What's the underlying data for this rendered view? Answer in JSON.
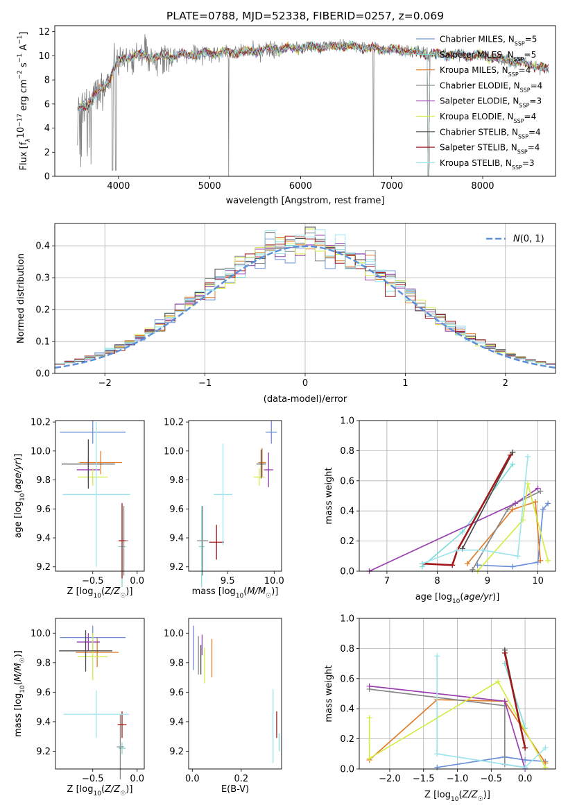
{
  "figure": {
    "title": "PLATE=0788, MJD=52338, FIBERID=0257, z=0.069"
  },
  "models": [
    {
      "name": "Chabrier MILES",
      "nssp": "5",
      "color": "#6a8fd8"
    },
    {
      "name": "Salpeter MILES",
      "nssp": "5",
      "color": "#7fdcd8"
    },
    {
      "name": "Kroupa MILES",
      "nssp": "4",
      "color": "#e07c2a"
    },
    {
      "name": "Chabrier ELODIE",
      "nssp": "4",
      "color": "#888888"
    },
    {
      "name": "Salpeter ELODIE",
      "nssp": "3",
      "color": "#9a3fb0"
    },
    {
      "name": "Kroupa ELODIE",
      "nssp": "4",
      "color": "#d5ec48"
    },
    {
      "name": "Chabrier STELIB",
      "nssp": "4",
      "color": "#4a4a4a"
    },
    {
      "name": "Salpeter STELIB",
      "nssp": "4",
      "color": "#a01818"
    },
    {
      "name": "Kroupa STELIB",
      "nssp": "3",
      "color": "#9ee4ee"
    }
  ],
  "chart_data": [
    {
      "id": "spectrum",
      "type": "line",
      "title": "PLATE=0788, MJD=52338, FIBERID=0257, z=0.069",
      "xlabel": "wavelength [Angstrom, rest frame]",
      "ylabel": "Flux [f_λ 10^-17 erg cm^-2 s^-1 A^-1]",
      "xlim": [
        3300,
        8800
      ],
      "ylim": [
        0,
        12.5
      ],
      "xticks": [
        "4000",
        "5000",
        "6000",
        "7000",
        "8000"
      ],
      "yticks": [
        "0",
        "2",
        "4",
        "6",
        "8",
        "10",
        "12"
      ],
      "data_color": "#808080",
      "continuum": {
        "x": [
          3550,
          3700,
          3850,
          4000,
          4200,
          4400,
          4700,
          5000,
          5500,
          6000,
          6500,
          7000,
          7500,
          8000,
          8500,
          8700
        ],
        "y": [
          5.5,
          6.3,
          7.5,
          9.6,
          10.1,
          9.9,
          10.1,
          10.2,
          10.4,
          10.7,
          10.8,
          10.5,
          10.1,
          10.0,
          9.3,
          8.9
        ]
      },
      "legend_position": "upper-right"
    },
    {
      "id": "residuals",
      "type": "histogram",
      "xlabel": "(data-model)/error",
      "ylabel": "Normed distribution",
      "xlim": [
        -2.5,
        2.5
      ],
      "ylim": [
        0,
        0.47
      ],
      "xticks": [
        "−2",
        "−1",
        "0",
        "1",
        "2"
      ],
      "yticks": [
        "0.0",
        "0.1",
        "0.2",
        "0.3",
        "0.4"
      ],
      "grid": true,
      "bin_width": 0.1,
      "reference_curve": {
        "label": "N(0, 1)",
        "mean": 0,
        "sigma": 1,
        "color": "#5b8fd9"
      }
    },
    {
      "id": "age-vs-Z",
      "type": "scatter",
      "xlabel": "Z [log10(Z/Z☉)]",
      "ylabel": "age [log10(age/yr)]",
      "xlim": [
        -0.92,
        0.08
      ],
      "ylim": [
        9.17,
        10.21
      ],
      "xticks": [
        "−0.5",
        "0.0"
      ],
      "xtick_values": [
        -0.5,
        0.0
      ],
      "yticks": [
        "9.2",
        "9.4",
        "9.6",
        "9.8",
        "10.0",
        "10.2"
      ],
      "points": [
        {
          "model": 0,
          "x": -0.5,
          "y": 10.13,
          "xerr": 0.37,
          "yerr": 0.08
        },
        {
          "model": 1,
          "x": -0.17,
          "y": 9.34,
          "xerr": 0.04,
          "yerr": 0.28
        },
        {
          "model": 2,
          "x": -0.41,
          "y": 9.92,
          "xerr": 0.24,
          "yerr": 0.08
        },
        {
          "model": 3,
          "x": -0.15,
          "y": 9.38,
          "xerr": 0.05,
          "yerr": 0.24
        },
        {
          "model": 4,
          "x": -0.55,
          "y": 9.87,
          "xerr": 0.13,
          "yerr": 0.08
        },
        {
          "model": 5,
          "x": -0.5,
          "y": 9.82,
          "xerr": 0.17,
          "yerr": 0.06
        },
        {
          "model": 6,
          "x": -0.55,
          "y": 9.91,
          "xerr": 0.3,
          "yerr": 0.17
        },
        {
          "model": 7,
          "x": -0.17,
          "y": 9.38,
          "xerr": 0.04,
          "yerr": 0.26
        },
        {
          "model": 8,
          "x": -0.46,
          "y": 9.7,
          "xerr": 0.38,
          "yerr": 0.5
        }
      ]
    },
    {
      "id": "age-vs-mass",
      "type": "scatter",
      "xlabel": "mass [log10(M/M☉)]",
      "ylabel": "",
      "xlim": [
        9.08,
        10.08
      ],
      "ylim": [
        9.17,
        10.21
      ],
      "xticks": [
        "9.5",
        "10.0"
      ],
      "xtick_values": [
        9.5,
        10.0
      ],
      "yticks": [
        "9.2",
        "9.4",
        "9.6",
        "9.8",
        "10.0",
        "10.2"
      ],
      "points": [
        {
          "model": 0,
          "x": 9.97,
          "y": 10.13,
          "xerr": 0.06,
          "yerr": 0.08
        },
        {
          "model": 1,
          "x": 9.22,
          "y": 9.34,
          "xerr": 0.03,
          "yerr": 0.28
        },
        {
          "model": 2,
          "x": 9.87,
          "y": 9.92,
          "xerr": 0.04,
          "yerr": 0.1
        },
        {
          "model": 3,
          "x": 9.23,
          "y": 9.38,
          "xerr": 0.06,
          "yerr": 0.24
        },
        {
          "model": 4,
          "x": 9.94,
          "y": 9.87,
          "xerr": 0.05,
          "yerr": 0.12
        },
        {
          "model": 5,
          "x": 9.84,
          "y": 9.82,
          "xerr": 0.06,
          "yerr": 0.06
        },
        {
          "model": 6,
          "x": 9.86,
          "y": 9.91,
          "xerr": 0.05,
          "yerr": 0.1
        },
        {
          "model": 7,
          "x": 9.38,
          "y": 9.37,
          "xerr": 0.08,
          "yerr": 0.12
        },
        {
          "model": 8,
          "x": 9.45,
          "y": 9.7,
          "xerr": 0.1,
          "yerr": 0.35
        }
      ]
    },
    {
      "id": "massweight-vs-age",
      "type": "line",
      "xlabel": "age [log10(age/yr)]",
      "ylabel": "mass weight",
      "xlim": [
        6.45,
        10.35
      ],
      "ylim": [
        0,
        1.0
      ],
      "xticks": [
        "7",
        "8",
        "9",
        "10"
      ],
      "xtick_values": [
        7,
        8,
        9,
        10
      ],
      "yticks": [
        "0.0",
        "0.2",
        "0.4",
        "0.6",
        "0.8",
        "1.0"
      ],
      "grid": true,
      "series": [
        {
          "model": 0,
          "x": [
            8.8,
            9.5,
            10.0,
            10.1,
            10.2
          ],
          "y": [
            0.04,
            0.03,
            0.06,
            0.41,
            0.45
          ]
        },
        {
          "model": 1,
          "x": [
            7.7,
            8.5,
            9.5
          ],
          "y": [
            0.03,
            0.26,
            0.71
          ]
        },
        {
          "model": 2,
          "x": [
            8.6,
            9.5,
            9.95,
            10.05
          ],
          "y": [
            0.05,
            0.41,
            0.46,
            0.07
          ]
        },
        {
          "model": 3,
          "x": [
            8.7,
            9.4,
            9.55,
            10.05
          ],
          "y": [
            0.01,
            0.41,
            0.45,
            0.53
          ]
        },
        {
          "model": 4,
          "x": [
            6.65,
            9.55,
            10.0
          ],
          "y": [
            0.0,
            0.45,
            0.55
          ]
        },
        {
          "model": 5,
          "x": [
            8.8,
            9.7,
            9.8,
            10.2
          ],
          "y": [
            0.0,
            0.34,
            0.58,
            0.07
          ]
        },
        {
          "model": 6,
          "x": [
            8.5,
            9.5
          ],
          "y": [
            0.15,
            0.79
          ]
        },
        {
          "model": 7,
          "x": [
            7.7,
            8.3,
            8.4,
            9.45
          ],
          "y": [
            0.05,
            0.04,
            0.14,
            0.77
          ]
        },
        {
          "model": 8,
          "x": [
            7.7,
            8.4,
            8.9,
            9.6,
            9.8
          ],
          "y": [
            0.05,
            0.14,
            0.14,
            0.1,
            0.76
          ]
        }
      ]
    },
    {
      "id": "mass-vs-Z",
      "type": "scatter",
      "xlabel": "Z [log10(Z/Z☉)]",
      "ylabel": "mass [log10(M/M☉)]",
      "xlim": [
        -0.92,
        0.08
      ],
      "ylim": [
        9.08,
        10.1
      ],
      "xticks": [
        "−0.5",
        "0.0"
      ],
      "xtick_values": [
        -0.5,
        0.0
      ],
      "yticks": [
        "9.2",
        "9.4",
        "9.6",
        "9.8",
        "10.0"
      ],
      "points": [
        {
          "model": 0,
          "x": -0.5,
          "y": 9.97,
          "xerr": 0.37,
          "yerr": 0.08
        },
        {
          "model": 1,
          "x": -0.17,
          "y": 9.22,
          "xerr": 0.04,
          "yerr": 0.04
        },
        {
          "model": 2,
          "x": -0.45,
          "y": 9.87,
          "xerr": 0.24,
          "yerr": 0.1
        },
        {
          "model": 3,
          "x": -0.19,
          "y": 9.23,
          "xerr": 0.04,
          "yerr": 0.22
        },
        {
          "model": 4,
          "x": -0.55,
          "y": 9.94,
          "xerr": 0.13,
          "yerr": 0.06
        },
        {
          "model": 5,
          "x": -0.5,
          "y": 9.84,
          "xerr": 0.17,
          "yerr": 0.16
        },
        {
          "model": 6,
          "x": -0.58,
          "y": 9.88,
          "xerr": 0.3,
          "yerr": 0.14
        },
        {
          "model": 7,
          "x": -0.17,
          "y": 9.38,
          "xerr": 0.05,
          "yerr": 0.09
        },
        {
          "model": 8,
          "x": -0.46,
          "y": 9.45,
          "xerr": 0.37,
          "yerr": 0.16
        }
      ]
    },
    {
      "id": "mass-vs-ebv",
      "type": "scatter",
      "xlabel": "E(B-V)",
      "ylabel": "",
      "xlim": [
        -0.015,
        0.365
      ],
      "ylim": [
        9.08,
        10.1
      ],
      "xticks": [
        "0.0",
        "0.2"
      ],
      "xtick_values": [
        0.0,
        0.2
      ],
      "yticks": [
        "9.2",
        "9.4",
        "9.6",
        "9.8",
        "10.0"
      ],
      "points": [
        {
          "model": 0,
          "x": 0.005,
          "y": 9.9,
          "xerr": 0,
          "yerr": 0.15
        },
        {
          "model": 1,
          "x": 0.355,
          "y": 9.26,
          "xerr": 0,
          "yerr": 0.06
        },
        {
          "model": 2,
          "x": 0.08,
          "y": 9.83,
          "xerr": 0,
          "yerr": 0.13
        },
        {
          "model": 3,
          "x": 0.025,
          "y": 9.85,
          "xerr": 0,
          "yerr": 0.13
        },
        {
          "model": 4,
          "x": 0.04,
          "y": 9.92,
          "xerr": 0,
          "yerr": 0.07
        },
        {
          "model": 5,
          "x": 0.05,
          "y": 9.78,
          "xerr": 0,
          "yerr": 0.12
        },
        {
          "model": 6,
          "x": 0.035,
          "y": 9.82,
          "xerr": 0,
          "yerr": 0.1
        },
        {
          "model": 7,
          "x": 0.345,
          "y": 9.38,
          "xerr": 0,
          "yerr": 0.09
        },
        {
          "model": 8,
          "x": 0.33,
          "y": 9.37,
          "xerr": 0,
          "yerr": 0.25
        }
      ]
    },
    {
      "id": "massweight-vs-Z",
      "type": "line",
      "xlabel": "Z [log10(Z/Z☉)]",
      "ylabel": "mass weight",
      "xlim": [
        -2.45,
        0.45
      ],
      "ylim": [
        0,
        1.0
      ],
      "xticks": [
        "−2.0",
        "−1.5",
        "−1.0",
        "−0.5",
        "0.0"
      ],
      "xtick_values": [
        -2.0,
        -1.5,
        -1.0,
        -0.5,
        0.0
      ],
      "yticks": [
        "0.0",
        "0.2",
        "0.4",
        "0.6",
        "0.8",
        "1.0"
      ],
      "grid": true,
      "series": [
        {
          "model": 0,
          "x": [
            -1.3,
            -0.3,
            0.0,
            0.3
          ],
          "y": [
            0.01,
            0.08,
            0.06,
            0.05
          ]
        },
        {
          "model": 1,
          "x": [
            -0.3,
            0.0
          ],
          "y": [
            0.7,
            0.27
          ]
        },
        {
          "model": 2,
          "x": [
            -2.3,
            -1.3,
            -0.3,
            0.3
          ],
          "y": [
            0.06,
            0.46,
            0.45,
            0.04
          ]
        },
        {
          "model": 3,
          "x": [
            -2.3,
            -0.3,
            -0.3,
            0.0
          ],
          "y": [
            0.53,
            0.42,
            0.03,
            0.01
          ]
        },
        {
          "model": 4,
          "x": [
            -2.3,
            -0.3,
            0.0
          ],
          "y": [
            0.55,
            0.45,
            0.0
          ]
        },
        {
          "model": 5,
          "x": [
            -2.3,
            -2.3,
            -0.4,
            0.3
          ],
          "y": [
            0.34,
            0.07,
            0.58,
            0.01
          ]
        },
        {
          "model": 6,
          "x": [
            -0.3,
            0.0
          ],
          "y": [
            0.79,
            0.14
          ]
        },
        {
          "model": 7,
          "x": [
            -0.3,
            0.0
          ],
          "y": [
            0.77,
            0.14
          ]
        },
        {
          "model": 8,
          "x": [
            -1.3,
            -1.3,
            0.0,
            0.3
          ],
          "y": [
            0.75,
            0.1,
            0.01,
            0.14
          ]
        }
      ]
    }
  ]
}
